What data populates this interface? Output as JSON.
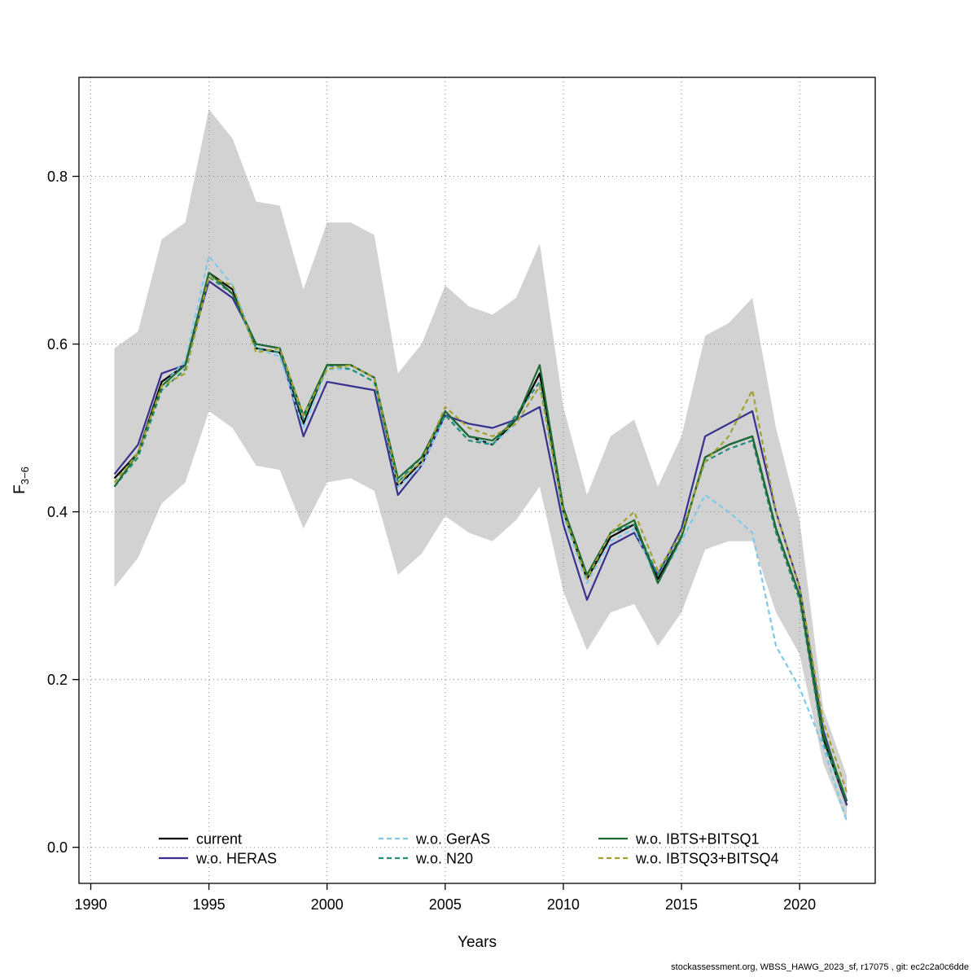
{
  "footer": {
    "text": "stockassessment.org, WBSS_HAWG_2023_sf, r17075 , git: ec2c2a0c6dde"
  },
  "chart_data": {
    "type": "line",
    "title": "",
    "xlabel": "Years",
    "ylabel_main": "F",
    "ylabel_sub": "3−6",
    "xlim": [
      1989.5,
      2023.2
    ],
    "ylim": [
      -0.043,
      0.918
    ],
    "x_ticks": [
      1990,
      1995,
      2000,
      2005,
      2010,
      2015,
      2020
    ],
    "y_ticks": [
      0.0,
      0.2,
      0.4,
      0.6,
      0.8
    ],
    "grid": "dotted",
    "legend_position": "bottom-inside",
    "years": [
      1991,
      1992,
      1993,
      1994,
      1995,
      1996,
      1997,
      1998,
      1999,
      2000,
      2001,
      2002,
      2003,
      2004,
      2005,
      2006,
      2007,
      2008,
      2009,
      2010,
      2011,
      2012,
      2013,
      2014,
      2015,
      2016,
      2017,
      2018,
      2019,
      2020,
      2021,
      2022
    ],
    "band": {
      "name": "confidence-interval",
      "color": "#d2d2d2",
      "lower": [
        0.31,
        0.345,
        0.41,
        0.435,
        0.52,
        0.5,
        0.455,
        0.45,
        0.38,
        0.435,
        0.44,
        0.425,
        0.325,
        0.35,
        0.395,
        0.375,
        0.365,
        0.39,
        0.43,
        0.305,
        0.235,
        0.28,
        0.29,
        0.24,
        0.28,
        0.355,
        0.365,
        0.365,
        0.28,
        0.23,
        0.1,
        0.03
      ],
      "upper": [
        0.595,
        0.615,
        0.725,
        0.745,
        0.88,
        0.845,
        0.77,
        0.765,
        0.665,
        0.745,
        0.745,
        0.73,
        0.565,
        0.6,
        0.67,
        0.645,
        0.635,
        0.655,
        0.72,
        0.525,
        0.42,
        0.49,
        0.51,
        0.43,
        0.49,
        0.61,
        0.625,
        0.655,
        0.5,
        0.39,
        0.165,
        0.085
      ]
    },
    "series": [
      {
        "name": "current",
        "color": "#000000",
        "line_style": "solid",
        "values": [
          0.44,
          0.47,
          0.555,
          0.575,
          0.685,
          0.665,
          0.595,
          0.59,
          0.505,
          0.575,
          0.575,
          0.56,
          0.43,
          0.46,
          0.52,
          0.49,
          0.48,
          0.51,
          0.565,
          0.4,
          0.32,
          0.37,
          0.385,
          0.32,
          0.37,
          0.465,
          0.48,
          0.49,
          0.38,
          0.3,
          0.13,
          0.05
        ]
      },
      {
        "name": "w.o. HERAS",
        "color": "#37308f",
        "line_style": "solid",
        "values": [
          0.445,
          0.48,
          0.565,
          0.575,
          0.675,
          0.655,
          0.6,
          0.595,
          0.49,
          0.555,
          0.55,
          0.545,
          0.42,
          0.455,
          0.515,
          0.505,
          0.5,
          0.51,
          0.525,
          0.385,
          0.295,
          0.36,
          0.375,
          0.325,
          0.38,
          0.49,
          0.505,
          0.52,
          0.4,
          0.31,
          0.14,
          0.05
        ]
      },
      {
        "name": "w.o. GerAS",
        "color": "#7ec9e8",
        "line_style": "dashed",
        "values": [
          0.435,
          0.47,
          0.55,
          0.58,
          0.705,
          0.67,
          0.595,
          0.585,
          0.5,
          0.57,
          0.57,
          0.555,
          0.43,
          0.455,
          0.515,
          0.49,
          0.48,
          0.505,
          0.55,
          0.395,
          0.315,
          0.365,
          0.38,
          0.315,
          0.365,
          0.42,
          0.4,
          0.375,
          0.24,
          0.19,
          0.12,
          0.03
        ]
      },
      {
        "name": "w.o. N20",
        "color": "#1f8f74",
        "line_style": "dashed",
        "values": [
          0.43,
          0.465,
          0.545,
          0.57,
          0.68,
          0.66,
          0.595,
          0.59,
          0.51,
          0.575,
          0.57,
          0.555,
          0.435,
          0.465,
          0.515,
          0.485,
          0.48,
          0.515,
          0.555,
          0.4,
          0.325,
          0.375,
          0.385,
          0.325,
          0.375,
          0.46,
          0.475,
          0.485,
          0.375,
          0.295,
          0.125,
          0.055
        ]
      },
      {
        "name": "w.o. IBTS+BITSQ1",
        "color": "#1d6b33",
        "line_style": "solid",
        "values": [
          0.43,
          0.47,
          0.55,
          0.575,
          0.685,
          0.66,
          0.6,
          0.595,
          0.515,
          0.575,
          0.575,
          0.56,
          0.44,
          0.465,
          0.52,
          0.49,
          0.485,
          0.51,
          0.575,
          0.405,
          0.325,
          0.375,
          0.39,
          0.315,
          0.37,
          0.465,
          0.48,
          0.49,
          0.38,
          0.3,
          0.135,
          0.055
        ]
      },
      {
        "name": "w.o. IBTSQ3+BITSQ4",
        "color": "#a2a12e",
        "line_style": "dashed",
        "values": [
          0.435,
          0.47,
          0.55,
          0.565,
          0.68,
          0.67,
          0.59,
          0.595,
          0.515,
          0.57,
          0.575,
          0.56,
          0.435,
          0.46,
          0.525,
          0.5,
          0.49,
          0.505,
          0.55,
          0.4,
          0.32,
          0.375,
          0.4,
          0.33,
          0.375,
          0.46,
          0.49,
          0.545,
          0.4,
          0.31,
          0.15,
          0.065
        ]
      }
    ]
  }
}
